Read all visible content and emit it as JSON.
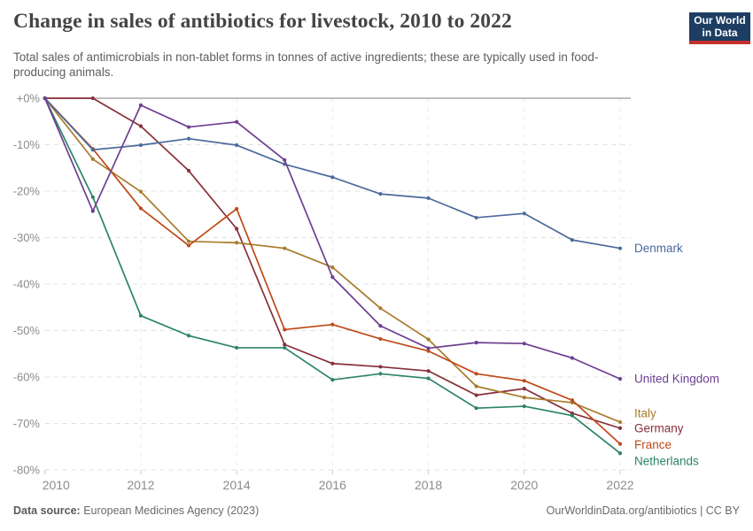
{
  "chart_data": {
    "type": "line",
    "title": "Change in sales of antibiotics for livestock, 2010 to 2022",
    "subtitle": "Total sales of antimicrobials in non-tablet forms in tonnes of active ingredients; these are typically used in food-producing animals.",
    "x": [
      2010,
      2011,
      2012,
      2013,
      2014,
      2015,
      2016,
      2017,
      2018,
      2019,
      2020,
      2021,
      2022
    ],
    "x_tick_labels": [
      "2010",
      "2012",
      "2014",
      "2016",
      "2018",
      "2020",
      "2022"
    ],
    "ylim": [
      -80,
      0
    ],
    "y_ticks": [
      0,
      -10,
      -20,
      -30,
      -40,
      -50,
      -60,
      -70,
      -80
    ],
    "y_tick_labels": [
      "+0%",
      "-10%",
      "-20%",
      "-30%",
      "-40%",
      "-50%",
      "-60%",
      "-70%",
      "-80%"
    ],
    "unit": "%",
    "grid": true,
    "legend_position": "end-of-line labels at right",
    "series": [
      {
        "name": "Denmark",
        "color": "#4C6A9C",
        "values": [
          0,
          -11.1,
          -10.1,
          -8.7,
          -10.1,
          -14.2,
          -17.0,
          -20.6,
          -21.5,
          -25.7,
          -24.8,
          -30.5,
          -32.3
        ]
      },
      {
        "name": "United Kingdom",
        "color": "#6D3E91",
        "values": [
          0,
          -24.3,
          -1.5,
          -6.2,
          -5.1,
          -13.3,
          -38.5,
          -49.0,
          -53.8,
          -52.6,
          -52.8,
          -55.9,
          -60.4
        ]
      },
      {
        "name": "Italy",
        "color": "#A87B2C",
        "values": [
          0,
          -13.1,
          -20.1,
          -30.8,
          -31.1,
          -32.3,
          -36.4,
          -45.2,
          -51.9,
          -62.0,
          -64.4,
          -65.5,
          -69.7
        ]
      },
      {
        "name": "Germany",
        "color": "#883039",
        "values": [
          0,
          0,
          -6.0,
          -15.6,
          -28.1,
          -53.0,
          -57.1,
          -57.8,
          -58.7,
          -63.9,
          -62.5,
          -67.8,
          -71.0
        ]
      },
      {
        "name": "France",
        "color": "#BF4917",
        "values": [
          0,
          -10.9,
          -23.7,
          -31.7,
          -23.8,
          -49.8,
          -48.7,
          -51.8,
          -54.4,
          -59.3,
          -60.8,
          -65.0,
          -74.4
        ]
      },
      {
        "name": "Netherlands",
        "color": "#2C8465",
        "values": [
          0,
          -21.3,
          -46.8,
          -51.1,
          -53.7,
          -53.7,
          -60.6,
          -59.3,
          -60.3,
          -66.7,
          -66.3,
          -68.3,
          -76.4
        ]
      }
    ]
  },
  "header": {
    "logo": {
      "line1": "Our World",
      "line2": "in Data",
      "bg_color": "#1d3d63",
      "accent_color": "#c5302b"
    }
  },
  "footer": {
    "source_label": "Data source:",
    "source_text": " European Medicines Agency (2023)",
    "credit": "OurWorldinData.org/antibiotics | CC BY"
  }
}
